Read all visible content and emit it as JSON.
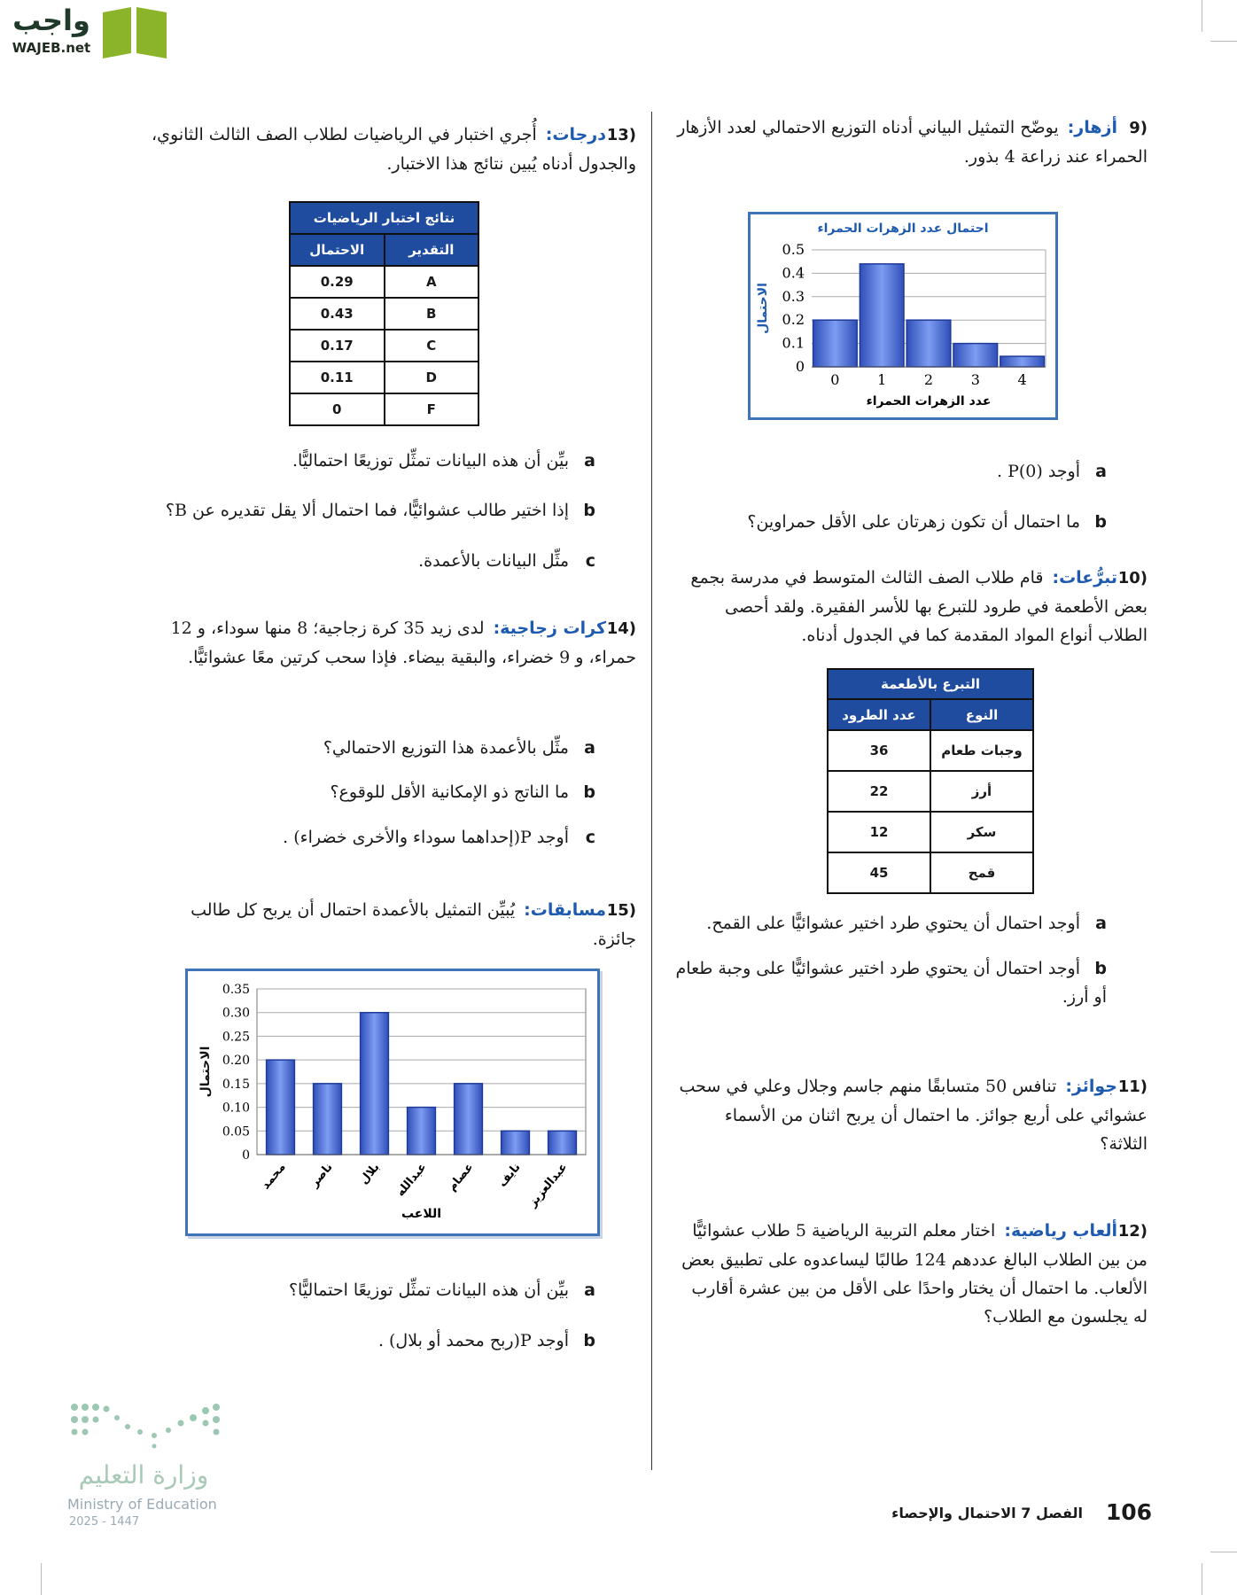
{
  "header": {
    "logo_ar": "واجب",
    "logo_en": "WAJEB.net"
  },
  "exercises": [
    {
      "number": "9)",
      "title": "أزهار:",
      "text": "يوضّح التمثيل البياني أدناه التوزيع الاحتمالي لعدد الأزهار الحمراء عند زراعة 4 بذور.",
      "chart": {
        "type": "bar",
        "title": "احتمال عدد الزهرات الحمراء",
        "x_label": "عدد الزهرات الحمراء",
        "y_label": "الاحتمال",
        "categories": [
          "0",
          "1",
          "2",
          "3",
          "4"
        ],
        "values": [
          0.2,
          0.44,
          0.2,
          0.1,
          0.045
        ],
        "color": "#4a6ee0",
        "ylim": [
          0,
          0.5
        ],
        "yticks": [
          0,
          0.1,
          0.2,
          0.3,
          0.4,
          0.5
        ],
        "grid": true
      },
      "parts": [
        {
          "label": "a",
          "text": "أوجد P(0) ."
        },
        {
          "label": "b",
          "text": "ما احتمال أن تكون زهرتان على الأقل حمراوين؟"
        }
      ]
    },
    {
      "number": "10)",
      "title": "تبرُّعات:",
      "text": "قام طلاب الصف الثالث المتوسط في مدرسة بجمع بعض الأطعمة في طرود للتبرع بها للأسر الفقيرة. ولقد أحصى الطلاب أنواع المواد المقدمة كما في الجدول أدناه.",
      "table": {
        "title": "التبرع بالأطعمة",
        "headers": [
          "النوع",
          "عدد الطرود"
        ],
        "rows": [
          [
            "وجبات طعام",
            36
          ],
          [
            "أرز",
            22
          ],
          [
            "سكر",
            12
          ],
          [
            "قمح",
            45
          ]
        ]
      },
      "parts": [
        {
          "label": "a",
          "text": "أوجد احتمال أن يحتوي طرد اختير عشوائيًّا على القمح."
        },
        {
          "label": "b",
          "text": "أوجد احتمال أن يحتوي طرد اختير عشوائيًّا على وجبة طعام أو أرز."
        }
      ]
    },
    {
      "number": "11)",
      "title": "جوائز:",
      "text": "تنافس 50 متسابقًا منهم جاسم وجلال وعلي في سحب عشوائي على أربع جوائز. ما احتمال أن يربح اثنان من الأسماء الثلاثة؟",
      "parts": []
    },
    {
      "number": "12)",
      "title": "ألعاب رياضية:",
      "text": "اختار معلم التربية الرياضية 5 طلاب عشوائيًّا من بين الطلاب البالغ عددهم 124 طالبًا ليساعدوه على تطبيق بعض الألعاب. ما احتمال أن يختار واحدًا على الأقل من بين عشرة أقارب له يجلسون مع الطلاب؟",
      "parts": []
    },
    {
      "number": "13)",
      "title": "درجات:",
      "text": "أُجري اختبار في الرياضيات لطلاب الصف الثالث الثانوي، والجدول أدناه يُبين نتائج هذا الاختبار.",
      "table": {
        "title": "نتائج اختبار الرياضيات",
        "headers": [
          "التقدير",
          "الاحتمال"
        ],
        "rows": [
          [
            "A",
            0.29
          ],
          [
            "B",
            0.43
          ],
          [
            "C",
            0.17
          ],
          [
            "D",
            0.11
          ],
          [
            "F",
            0
          ]
        ]
      },
      "parts": [
        {
          "label": "a",
          "text": "بيِّن أن هذه البيانات تمثِّل توزيعًا احتماليًّا."
        },
        {
          "label": "b",
          "text": "إذا اختير طالب عشوائيًّا، فما احتمال ألا يقل تقديره عن B؟"
        },
        {
          "label": "c",
          "text": "مثِّل البيانات بالأعمدة."
        }
      ]
    },
    {
      "number": "14)",
      "title": "كرات زجاجية:",
      "text": "لدى زيد 35 كرة زجاجية؛ 8 منها سوداء، و 12 حمراء، و 9 خضراء، والبقية بيضاء. فإذا سحب كرتين معًا عشوائيًّا.",
      "parts": [
        {
          "label": "a",
          "text": "مثِّل بالأعمدة هذا التوزيع الاحتمالي؟"
        },
        {
          "label": "b",
          "text": "ما الناتج ذو الإمكانية الأقل للوقوع؟"
        },
        {
          "label": "c",
          "text": "أوجد P(إحداهما سوداء والأخرى خضراء) ."
        }
      ]
    },
    {
      "number": "15)",
      "title": "مسابقات:",
      "text": "يُبيِّن التمثيل بالأعمدة احتمال أن يربح كل طالب جائزة.",
      "chart": {
        "type": "bar",
        "x_label": "اللاعب",
        "y_label": "الاحتمال",
        "categories": [
          "محمد",
          "ناصر",
          "بلال",
          "عبدالله",
          "عصام",
          "نايف",
          "عبدالعزيز"
        ],
        "values": [
          0.2,
          0.15,
          0.3,
          0.1,
          0.15,
          0.05,
          0.05
        ],
        "color": "#4a6ee0",
        "ylim": [
          0,
          0.35
        ],
        "yticks": [
          0,
          0.05,
          {
            "value": 0.1,
            "label": "0.10"
          },
          0.15,
          {
            "value": 0.2,
            "label": "0.20"
          },
          0.25,
          {
            "value": 0.3,
            "label": "0.30"
          },
          0.35
        ],
        "grid": true
      },
      "parts": [
        {
          "label": "a",
          "text": "بيِّن أن هذه البيانات تمثِّل توزيعًا احتماليًّا؟"
        },
        {
          "label": "b",
          "text": "أوجد P(ربح محمد أو بلال) ."
        }
      ]
    }
  ],
  "footer": {
    "page": "106",
    "chapter": "الفصل 7",
    "chapter_title": "الاحتمال والإحصاء"
  },
  "ministry": {
    "name_ar": "وزارة التعليم",
    "name_en": "Ministry of Education",
    "year": "2025 - 1447"
  }
}
